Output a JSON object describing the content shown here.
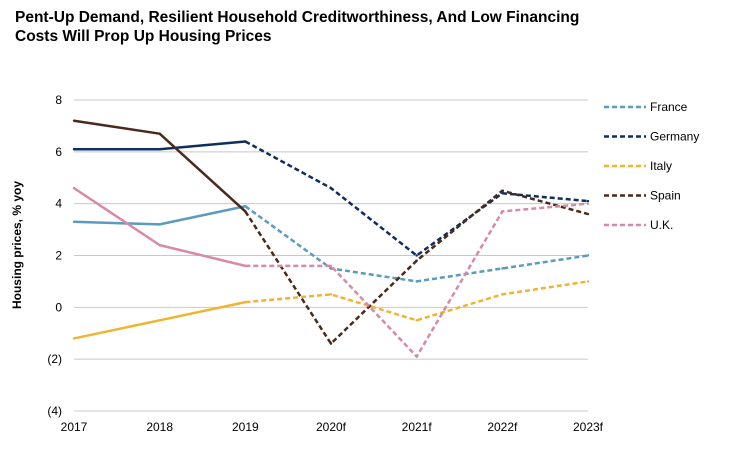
{
  "chart_data": {
    "type": "line",
    "title": "Pent-Up Demand, Resilient Household Creditworthiness, And Low Financing Costs Will Prop Up Housing Prices",
    "xlabel": "",
    "ylabel": "Housing prices, % yoy",
    "categories": [
      "2017",
      "2018",
      "2019",
      "2020f",
      "2021f",
      "2022f",
      "2023f"
    ],
    "ylim": [
      -4,
      8
    ],
    "yticks": [
      8,
      6,
      4,
      2,
      0,
      -2,
      -4
    ],
    "ytick_labels": [
      "8",
      "6",
      "4",
      "2",
      "0",
      "(2)",
      "(4)"
    ],
    "actual_through_index": 2,
    "series": [
      {
        "name": "France",
        "color": "#5b9bbd",
        "values": [
          3.3,
          3.2,
          3.9,
          1.5,
          1.0,
          1.5,
          2.0
        ]
      },
      {
        "name": "Germany",
        "color": "#0e2e5c",
        "values": [
          6.1,
          6.1,
          6.4,
          4.6,
          2.0,
          4.4,
          4.1
        ]
      },
      {
        "name": "Italy",
        "color": "#f0b432",
        "values": [
          -1.2,
          -0.5,
          0.2,
          0.5,
          -0.5,
          0.5,
          1.0
        ]
      },
      {
        "name": "Spain",
        "color": "#4a2a1a",
        "values": [
          7.2,
          6.7,
          3.7,
          -1.4,
          1.8,
          4.5,
          3.6
        ]
      },
      {
        "name": "U.K.",
        "color": "#d889a6",
        "values": [
          4.6,
          2.4,
          1.6,
          1.6,
          -1.9,
          3.7,
          4.0
        ]
      }
    ]
  }
}
